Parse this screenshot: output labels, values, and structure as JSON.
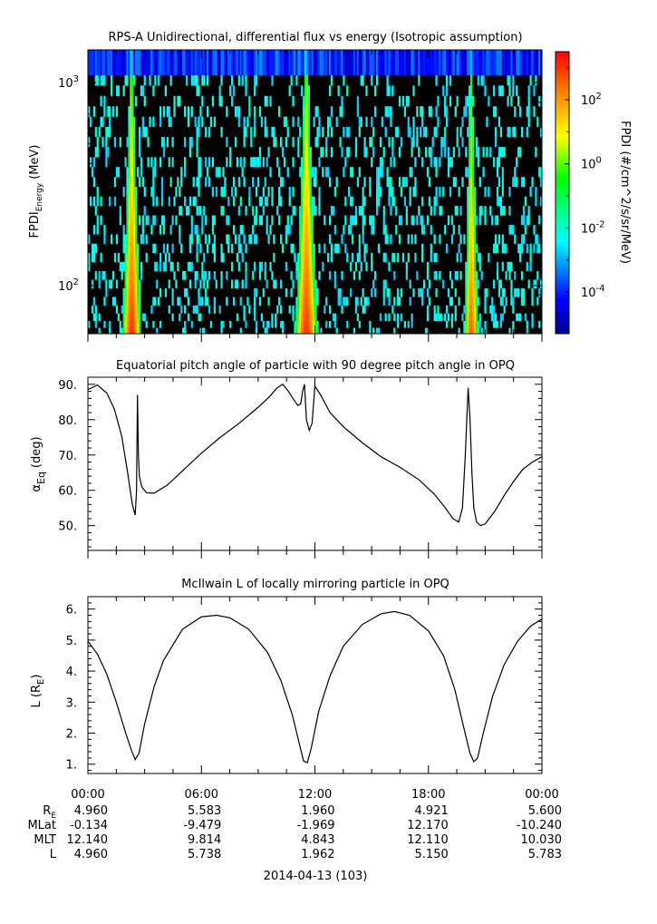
{
  "chart_data": [
    {
      "type": "heatmap",
      "title": "RPS-A Unidirectional, differential flux vs energy (Isotropic assumption)",
      "ylabel_main": "FPDI",
      "ylabel_sub": "Energy",
      "ylabel_unit": "(MeV)",
      "y_scale": "log",
      "ylim": [
        58,
        1450
      ],
      "y_ticks": [
        {
          "value": 100,
          "base": "10",
          "exp": "2"
        },
        {
          "value": 1000,
          "base": "10",
          "exp": "3"
        }
      ],
      "xlim": [
        0,
        24
      ],
      "energy_channel_edges": [
        58,
        62,
        67,
        73,
        80,
        88,
        97,
        107,
        118,
        131,
        145,
        161,
        179,
        199,
        222,
        247,
        275,
        307,
        343,
        384,
        430,
        482,
        540,
        606,
        680,
        765,
        860,
        968,
        1090,
        1450
      ],
      "passes": [
        {
          "center": 2.3,
          "half_width": 0.45,
          "peak_log_flux": 3.0
        },
        {
          "center": 11.55,
          "half_width": 0.55,
          "peak_log_flux": 3.0
        },
        {
          "center": 20.25,
          "half_width": 0.35,
          "peak_log_flux": 2.6
        }
      ],
      "background_log_flux": -2.4,
      "colorbar": {
        "label": "FPDI (#/cm^2/s/sr/MeV)",
        "scale": "log",
        "range_log": [
          -5.3,
          3.5
        ],
        "ticks": [
          {
            "log": 2,
            "base": "10",
            "exp": "2"
          },
          {
            "log": 0,
            "base": "10",
            "exp": "0"
          },
          {
            "log": -2,
            "base": "10",
            "exp": "-2"
          },
          {
            "log": -4,
            "base": "10",
            "exp": "-4"
          }
        ],
        "colormap": "rainbow"
      }
    },
    {
      "type": "line",
      "title": "Equatorial pitch angle of particle with 90 degree pitch angle in OPQ",
      "ylabel_main": "α",
      "ylabel_sub": "Eq",
      "ylabel_unit": "(deg)",
      "ylim": [
        43,
        92
      ],
      "y_ticks": [
        "50.",
        "60.",
        "70.",
        "80.",
        "90."
      ],
      "xlim": [
        0,
        24
      ],
      "series": [
        {
          "x": [
            0,
            0.5,
            1.0,
            1.4,
            1.8,
            2.1,
            2.35,
            2.5,
            2.57,
            2.62,
            2.67,
            2.72,
            2.85,
            3.1,
            3.5,
            4.2,
            5.0,
            6.0,
            7.0,
            8.0,
            9.0,
            9.6,
            10.0,
            10.3,
            10.6,
            10.9,
            11.1,
            11.25,
            11.35,
            11.45,
            11.55,
            11.7,
            11.85,
            12.0,
            12.3,
            12.8,
            13.5,
            14.5,
            15.5,
            16.5,
            17.5,
            18.3,
            18.9,
            19.3,
            19.6,
            19.8,
            19.95,
            20.1,
            20.2,
            20.3,
            20.4,
            20.55,
            20.75,
            21.0,
            21.5,
            22.0,
            22.5,
            23.0,
            23.5,
            24.0
          ],
          "y": [
            88.5,
            89.8,
            87.5,
            83.0,
            75.0,
            65.0,
            56.0,
            53.0,
            60.0,
            87.0,
            70.0,
            64.0,
            61.0,
            59.3,
            59.2,
            61.5,
            65.5,
            70.5,
            75.0,
            79.0,
            83.5,
            86.5,
            89.0,
            90.0,
            88.0,
            85.5,
            84.0,
            84.5,
            88.0,
            90.0,
            80.0,
            77.0,
            79.0,
            89.5,
            87.0,
            82.0,
            78.0,
            73.5,
            69.5,
            66.5,
            63.0,
            59.0,
            55.0,
            52.0,
            51.0,
            55.0,
            70.0,
            89.0,
            80.0,
            65.0,
            55.0,
            51.0,
            50.0,
            50.5,
            54.0,
            58.5,
            62.5,
            66.0,
            68.0,
            69.5
          ]
        }
      ]
    },
    {
      "type": "line",
      "title": "McIlwain L of locally mirroring particle in OPQ",
      "ylabel_main": "L (R",
      "ylabel_sub": "E",
      "ylabel_unit": ")",
      "ylim": [
        0.7,
        6.4
      ],
      "y_ticks": [
        "1.",
        "2.",
        "3.",
        "4.",
        "5.",
        "6."
      ],
      "xlim": [
        0,
        24
      ],
      "series": [
        {
          "x": [
            0,
            0.5,
            1.0,
            1.5,
            2.0,
            2.3,
            2.5,
            2.7,
            3.0,
            3.5,
            4.0,
            5.0,
            6.0,
            6.8,
            7.5,
            8.5,
            9.5,
            10.2,
            10.8,
            11.2,
            11.4,
            11.6,
            11.8,
            12.2,
            12.8,
            13.5,
            14.5,
            15.5,
            16.2,
            17.0,
            18.0,
            18.8,
            19.4,
            19.9,
            20.2,
            20.4,
            20.6,
            20.9,
            21.4,
            22.0,
            22.7,
            23.4,
            24.0
          ],
          "y": [
            4.96,
            4.55,
            3.9,
            3.0,
            2.0,
            1.45,
            1.15,
            1.35,
            2.3,
            3.5,
            4.35,
            5.35,
            5.75,
            5.8,
            5.72,
            5.35,
            4.6,
            3.7,
            2.6,
            1.6,
            1.1,
            1.05,
            1.5,
            2.7,
            3.85,
            4.8,
            5.5,
            5.85,
            5.92,
            5.8,
            5.3,
            4.5,
            3.4,
            2.1,
            1.35,
            1.08,
            1.2,
            2.0,
            3.2,
            4.2,
            4.95,
            5.45,
            5.68
          ]
        }
      ]
    }
  ],
  "time_axis": {
    "ticks": [
      {
        "hour": 0,
        "label": "00:00"
      },
      {
        "hour": 6,
        "label": "06:00"
      },
      {
        "hour": 12,
        "label": "12:00"
      },
      {
        "hour": 18,
        "label": "18:00"
      },
      {
        "hour": 24,
        "label": "00:00"
      }
    ],
    "minor_step_hours": 1.5,
    "date_label": "2014-04-13 (103)"
  },
  "ephemeris": {
    "rows": [
      {
        "label": "R",
        "label_sub": "E",
        "values": [
          "4.960",
          "5.583",
          "1.960",
          "4.921",
          "5.600"
        ]
      },
      {
        "label": "MLat",
        "label_sub": "",
        "values": [
          "-0.134",
          "-9.479",
          "-1.969",
          "12.170",
          "-10.240"
        ]
      },
      {
        "label": "MLT",
        "label_sub": "",
        "values": [
          "12.140",
          "9.814",
          "4.843",
          "12.110",
          "10.030"
        ]
      },
      {
        "label": "L",
        "label_sub": "",
        "values": [
          "4.960",
          "5.738",
          "1.962",
          "5.150",
          "5.783"
        ]
      }
    ]
  }
}
